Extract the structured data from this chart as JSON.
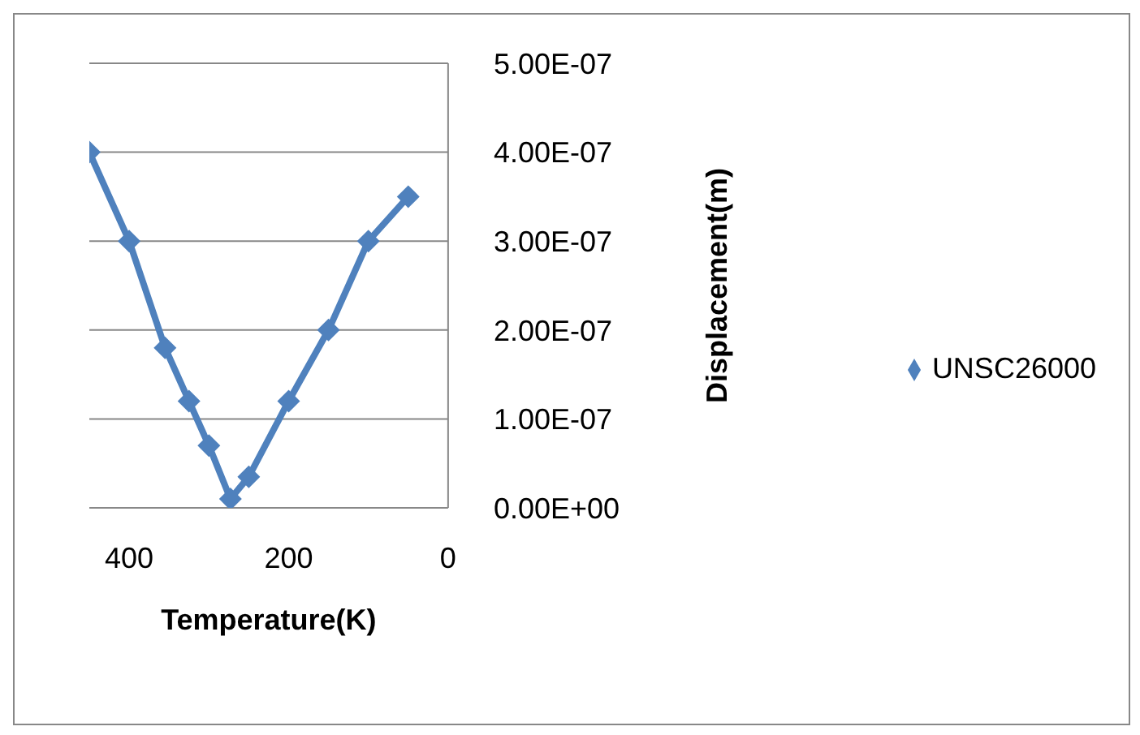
{
  "chart_data": {
    "type": "line",
    "xlabel": "Temperature(K)",
    "ylabel": "Displacement(m)",
    "x": [
      450,
      400,
      355,
      325,
      300,
      273,
      250,
      200,
      150,
      100,
      50
    ],
    "series": [
      {
        "name": "UNSC26000",
        "color": "#4f81bd",
        "values": [
          4e-07,
          3e-07,
          1.8e-07,
          1.2e-07,
          7e-08,
          1e-08,
          3.5e-08,
          1.2e-07,
          2e-07,
          3e-07,
          3.5e-07
        ]
      }
    ],
    "xlim": [
      450,
      0
    ],
    "xticks": [
      400,
      200,
      0
    ],
    "ylim": [
      0,
      5e-07
    ],
    "yticks": [
      {
        "value": 0,
        "label": "0.00E+00"
      },
      {
        "value": 1e-07,
        "label": "1.00E-07"
      },
      {
        "value": 2e-07,
        "label": "2.00E-07"
      },
      {
        "value": 3e-07,
        "label": "3.00E-07"
      },
      {
        "value": 4e-07,
        "label": "4.00E-07"
      },
      {
        "value": 5e-07,
        "label": "5.00E-07"
      }
    ],
    "grid": "y",
    "legend": "right",
    "marker": "diamond",
    "line_style": "solid"
  }
}
